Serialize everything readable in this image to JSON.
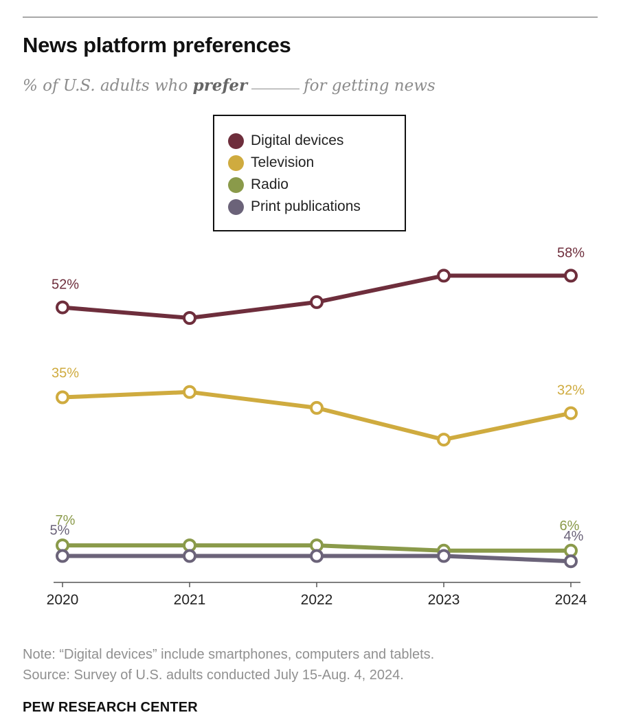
{
  "title": "News platform preferences",
  "subtitle": {
    "before": "% of U.S. adults who ",
    "emphasis": "prefer",
    "after": "for getting news"
  },
  "note": "Note: “Digital devices” include smartphones, computers and tablets.",
  "source": "Source: Survey of U.S. adults conducted July 15-Aug. 4, 2024.",
  "organization": "PEW RESEARCH CENTER",
  "chart_data": {
    "type": "line",
    "title": "News platform preferences",
    "subtitle": "% of U.S. adults who prefer _____ for getting news",
    "x": [
      "2020",
      "2021",
      "2022",
      "2023",
      "2024"
    ],
    "xlabel": "",
    "ylabel": "",
    "ylim": [
      0,
      65
    ],
    "grid": false,
    "legend_placement": "top-center",
    "series": [
      {
        "name": "Digital devices",
        "color": "#6e2e3c",
        "values": [
          52,
          50,
          53,
          58,
          58
        ],
        "labels": [
          "52%",
          "",
          "",
          "",
          "58%"
        ]
      },
      {
        "name": "Television",
        "color": "#cfab3f",
        "values": [
          35,
          36,
          33,
          27,
          32
        ],
        "labels": [
          "35%",
          "",
          "",
          "",
          "32%"
        ]
      },
      {
        "name": "Radio",
        "color": "#8a9a4a",
        "values": [
          7,
          7,
          7,
          6,
          6
        ],
        "labels": [
          "7%",
          "",
          "",
          "",
          "6%"
        ]
      },
      {
        "name": "Print publications",
        "color": "#6b6379",
        "values": [
          5,
          5,
          5,
          5,
          4
        ],
        "labels": [
          "5%",
          "",
          "",
          "",
          "4%"
        ]
      }
    ]
  }
}
